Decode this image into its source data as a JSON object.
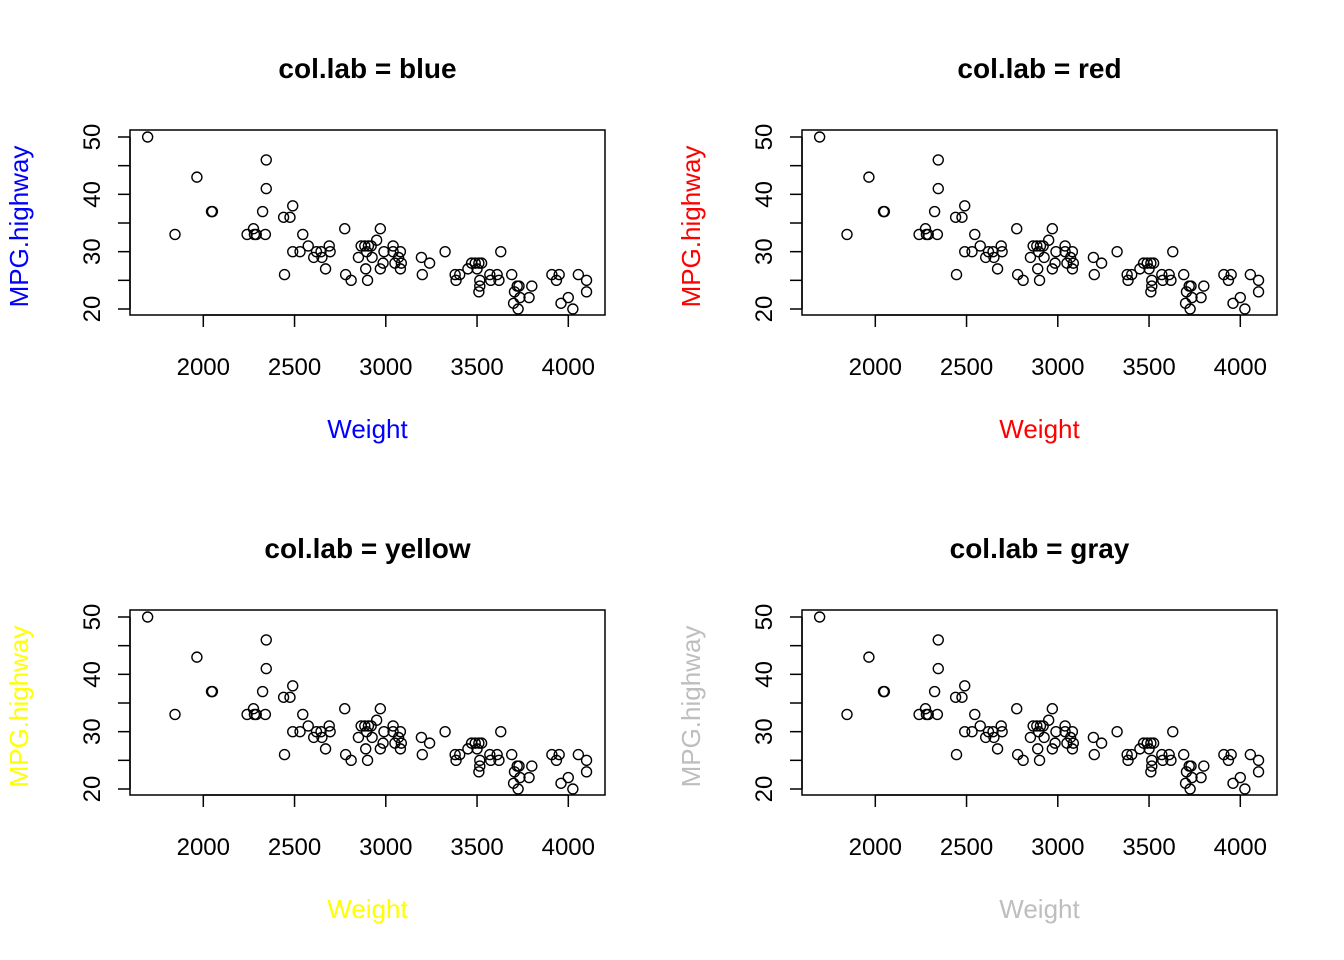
{
  "chart_data": [
    {
      "type": "scatter",
      "title": "col.lab = blue",
      "xlabel": "Weight",
      "ylabel": "MPG.highway",
      "label_color": "#0000ff",
      "xlim": [
        1600,
        4150
      ],
      "ylim": [
        19,
        51
      ],
      "xticks": [
        2000,
        2500,
        3000,
        3500,
        4000
      ],
      "yticks": [
        20,
        30,
        40,
        50
      ],
      "series": []
    },
    {
      "type": "scatter",
      "title": "col.lab = red",
      "xlabel": "Weight",
      "ylabel": "MPG.highway",
      "label_color": "#ff0000",
      "xlim": [
        1600,
        4150
      ],
      "ylim": [
        19,
        51
      ],
      "xticks": [
        2000,
        2500,
        3000,
        3500,
        4000
      ],
      "yticks": [
        20,
        30,
        40,
        50
      ],
      "series": []
    },
    {
      "type": "scatter",
      "title": "col.lab = yellow",
      "xlabel": "Weight",
      "ylabel": "MPG.highway",
      "label_color": "#ffff00",
      "xlim": [
        1600,
        4150
      ],
      "ylim": [
        19,
        51
      ],
      "xticks": [
        2000,
        2500,
        3000,
        3500,
        4000
      ],
      "yticks": [
        20,
        30,
        40,
        50
      ],
      "series": []
    },
    {
      "type": "scatter",
      "title": "col.lab = gray",
      "xlabel": "Weight",
      "ylabel": "MPG.highway",
      "label_color": "#bebebe",
      "xlim": [
        1600,
        4150
      ],
      "ylim": [
        19,
        51
      ],
      "xticks": [
        2000,
        2500,
        3000,
        3500,
        4000
      ],
      "yticks": [
        20,
        30,
        40,
        50
      ],
      "series": []
    }
  ],
  "points": [
    [
      1695,
      50
    ],
    [
      1845,
      33
    ],
    [
      1965,
      43
    ],
    [
      2045,
      37
    ],
    [
      2050,
      37
    ],
    [
      2240,
      33
    ],
    [
      2275,
      34
    ],
    [
      2280,
      33
    ],
    [
      2290,
      33
    ],
    [
      2325,
      37
    ],
    [
      2340,
      33
    ],
    [
      2345,
      46
    ],
    [
      2345,
      41
    ],
    [
      2440,
      36
    ],
    [
      2445,
      26
    ],
    [
      2475,
      36
    ],
    [
      2490,
      38
    ],
    [
      2490,
      30
    ],
    [
      2530,
      30
    ],
    [
      2545,
      33
    ],
    [
      2575,
      31
    ],
    [
      2605,
      29
    ],
    [
      2620,
      30
    ],
    [
      2645,
      30
    ],
    [
      2650,
      29
    ],
    [
      2670,
      27
    ],
    [
      2690,
      31
    ],
    [
      2695,
      30
    ],
    [
      2775,
      34
    ],
    [
      2780,
      26
    ],
    [
      2810,
      25
    ],
    [
      2850,
      29
    ],
    [
      2865,
      31
    ],
    [
      2885,
      31
    ],
    [
      2890,
      27
    ],
    [
      2895,
      30
    ],
    [
      2900,
      25
    ],
    [
      2905,
      31
    ],
    [
      2920,
      31
    ],
    [
      2925,
      29
    ],
    [
      2950,
      32
    ],
    [
      2970,
      34
    ],
    [
      2970,
      27
    ],
    [
      2985,
      28
    ],
    [
      2990,
      30
    ],
    [
      3040,
      30
    ],
    [
      3040,
      31
    ],
    [
      3050,
      28
    ],
    [
      3070,
      29
    ],
    [
      3080,
      30
    ],
    [
      3080,
      27
    ],
    [
      3085,
      28
    ],
    [
      3195,
      29
    ],
    [
      3200,
      26
    ],
    [
      3240,
      28
    ],
    [
      3325,
      30
    ],
    [
      3380,
      26
    ],
    [
      3385,
      25
    ],
    [
      3405,
      26
    ],
    [
      3450,
      27
    ],
    [
      3470,
      28
    ],
    [
      3490,
      28
    ],
    [
      3500,
      27
    ],
    [
      3510,
      28
    ],
    [
      3510,
      23
    ],
    [
      3515,
      24
    ],
    [
      3515,
      25
    ],
    [
      3525,
      28
    ],
    [
      3570,
      26
    ],
    [
      3575,
      25
    ],
    [
      3610,
      26
    ],
    [
      3620,
      25
    ],
    [
      3630,
      30
    ],
    [
      3690,
      26
    ],
    [
      3700,
      21
    ],
    [
      3705,
      23
    ],
    [
      3720,
      24
    ],
    [
      3725,
      20
    ],
    [
      3730,
      24
    ],
    [
      3735,
      22
    ],
    [
      3785,
      22
    ],
    [
      3800,
      24
    ],
    [
      3910,
      26
    ],
    [
      3935,
      25
    ],
    [
      3950,
      26
    ],
    [
      3960,
      21
    ],
    [
      4000,
      22
    ],
    [
      4025,
      20
    ],
    [
      4055,
      26
    ],
    [
      4100,
      25
    ],
    [
      4100,
      23
    ]
  ]
}
